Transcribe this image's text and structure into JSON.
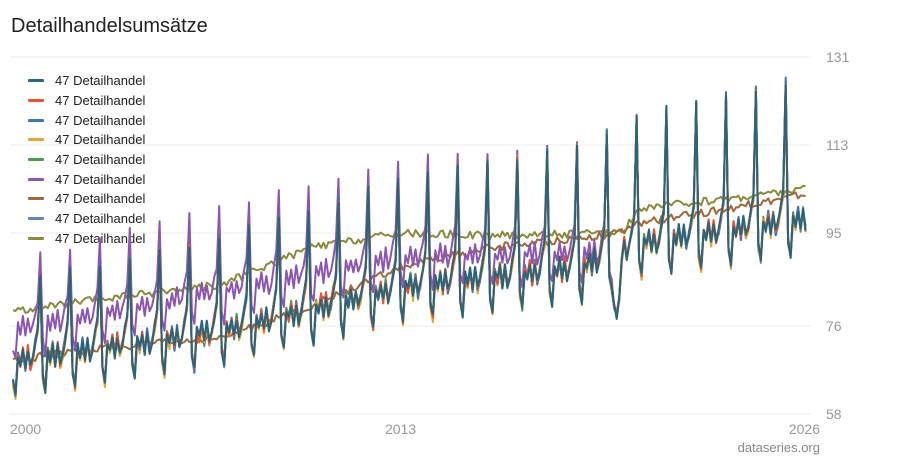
{
  "title": "Detailhandelsumsätze",
  "source": "dataseries.org",
  "chart_data": {
    "type": "line",
    "x_range": [
      1999.9,
      2026.8
    ],
    "ylim": [
      58,
      131
    ],
    "y_ticks": [
      58,
      76,
      95,
      113,
      131
    ],
    "x_ticks": [
      {
        "label": "2000",
        "value": 2000
      },
      {
        "label": "2013",
        "value": 2013
      },
      {
        "label": "2026",
        "value": 2026
      }
    ],
    "legend_position": "top-left",
    "grid": true,
    "series": [
      {
        "name": "47 Detailhandel",
        "color": "#2b6478",
        "kind": "seasonal",
        "start": 2000,
        "end": 2026.6,
        "base": [
          [
            2000,
            71
          ],
          [
            2007,
            77
          ],
          [
            2013,
            86
          ],
          [
            2019,
            90
          ],
          [
            2021,
            95
          ],
          [
            2026.6,
            100
          ]
        ],
        "amp": 1.0
      },
      {
        "name": "47 Detailhandel",
        "color": "#e8542f",
        "kind": "seasonal",
        "start": 2000,
        "end": 2026.6,
        "base": [
          [
            2000,
            71
          ],
          [
            2007,
            77
          ],
          [
            2013,
            86
          ],
          [
            2019,
            90
          ],
          [
            2021,
            95
          ],
          [
            2026.6,
            100
          ]
        ],
        "amp": 0.98
      },
      {
        "name": "47 Detailhandel",
        "color": "#3b75b5",
        "kind": "seasonal",
        "start": 2000,
        "end": 2026.6,
        "base": [
          [
            2000,
            71
          ],
          [
            2007,
            77
          ],
          [
            2013,
            86
          ],
          [
            2019,
            90
          ],
          [
            2021,
            95
          ],
          [
            2026.6,
            100
          ]
        ],
        "amp": 1.01
      },
      {
        "name": "47 Detailhandel",
        "color": "#e0a832",
        "kind": "seasonal",
        "start": 2000,
        "end": 2026.6,
        "base": [
          [
            2000,
            70.5
          ],
          [
            2007,
            76.5
          ],
          [
            2013,
            85.5
          ],
          [
            2019,
            89.5
          ],
          [
            2021,
            94.5
          ],
          [
            2026.6,
            99.5
          ]
        ],
        "amp": 1.0
      },
      {
        "name": "47 Detailhandel",
        "color": "#4c9a4c",
        "kind": "seasonal",
        "start": 2000,
        "end": 2026.6,
        "base": [
          [
            2000,
            71
          ],
          [
            2007,
            77
          ],
          [
            2013,
            86
          ],
          [
            2019,
            90
          ],
          [
            2021,
            95
          ],
          [
            2026.6,
            100
          ]
        ],
        "amp": 0.99
      },
      {
        "name": "47 Detailhandel",
        "color": "#8c55b0",
        "kind": "seasonal",
        "start": 2000,
        "end": 2020.4,
        "base": [
          [
            2000,
            77
          ],
          [
            2007,
            85
          ],
          [
            2013,
            92
          ],
          [
            2020.4,
            93
          ]
        ],
        "amp": 0.9
      },
      {
        "name": "47 Detailhandel",
        "color": "#a0673a",
        "kind": "smooth",
        "start": 2000,
        "end": 2026.6,
        "base": [
          [
            2000,
            69
          ],
          [
            2003,
            71.5
          ],
          [
            2007,
            73.5
          ],
          [
            2010,
            80
          ],
          [
            2013,
            88
          ],
          [
            2016,
            92
          ],
          [
            2020.4,
            95
          ],
          [
            2021,
            97
          ],
          [
            2024,
            100
          ],
          [
            2026.6,
            103
          ]
        ]
      },
      {
        "name": "47 Detailhandel",
        "color": "#5f88b0",
        "kind": "seasonal",
        "start": 2000,
        "end": 2026.6,
        "base": [
          [
            2000,
            71
          ],
          [
            2007,
            77
          ],
          [
            2013,
            86
          ],
          [
            2019,
            90
          ],
          [
            2021,
            95
          ],
          [
            2026.6,
            100
          ]
        ],
        "amp": 1.0
      },
      {
        "name": "47 Detailhandel",
        "color": "#8a8a3c",
        "kind": "smooth",
        "start": 2000,
        "end": 2026.6,
        "base": [
          [
            2000,
            79
          ],
          [
            2003,
            81.5
          ],
          [
            2007,
            84.5
          ],
          [
            2010,
            92
          ],
          [
            2013,
            95
          ],
          [
            2016,
            94.5
          ],
          [
            2020.4,
            95
          ],
          [
            2021,
            100
          ],
          [
            2024,
            102
          ],
          [
            2026.6,
            104
          ]
        ]
      }
    ]
  }
}
